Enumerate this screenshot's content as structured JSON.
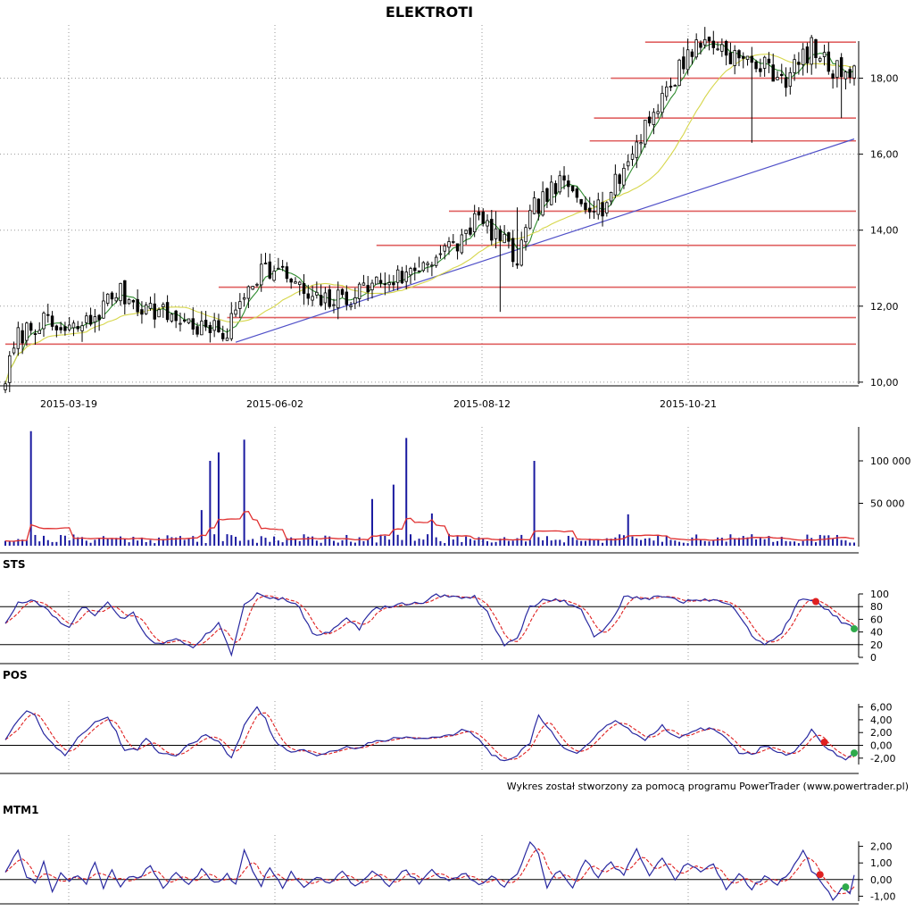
{
  "chart_data": [
    {
      "type": "candlestick",
      "title": "ELEKTROTI",
      "x_labels": [
        "2015-03-19",
        "2015-06-02",
        "2015-08-12",
        "2015-10-21"
      ],
      "y_ticks": [
        "10,00",
        "12,00",
        "14,00",
        "16,00",
        "18,00"
      ],
      "ylim": [
        9.95,
        19.4
      ],
      "grid": "dotted",
      "sessions": 200,
      "close_anchors": [
        [
          0,
          10.1
        ],
        [
          3,
          11.2
        ],
        [
          8,
          11.6
        ],
        [
          14,
          11.3
        ],
        [
          20,
          11.6
        ],
        [
          26,
          12.4
        ],
        [
          32,
          12.0
        ],
        [
          40,
          11.7
        ],
        [
          46,
          11.4
        ],
        [
          52,
          11.3
        ],
        [
          56,
          12.4
        ],
        [
          60,
          13.0
        ],
        [
          66,
          12.8
        ],
        [
          72,
          12.1
        ],
        [
          80,
          12.2
        ],
        [
          86,
          12.6
        ],
        [
          94,
          12.8
        ],
        [
          100,
          13.3
        ],
        [
          106,
          13.6
        ],
        [
          110,
          14.3
        ],
        [
          115,
          13.9
        ],
        [
          120,
          13.2
        ],
        [
          124,
          14.6
        ],
        [
          130,
          15.2
        ],
        [
          136,
          14.8
        ],
        [
          140,
          14.6
        ],
        [
          146,
          15.8
        ],
        [
          150,
          16.8
        ],
        [
          156,
          17.8
        ],
        [
          160,
          18.7
        ],
        [
          165,
          19.0
        ],
        [
          172,
          18.5
        ],
        [
          178,
          18.3
        ],
        [
          183,
          18.0
        ],
        [
          189,
          18.8
        ],
        [
          194,
          18.2
        ],
        [
          199,
          18.3
        ]
      ],
      "support_lines": [
        {
          "y": 11.0,
          "from_session": 0
        },
        {
          "y": 11.7,
          "from_session": 52
        },
        {
          "y": 12.5,
          "from_session": 50
        },
        {
          "y": 13.6,
          "from_session": 87
        },
        {
          "y": 14.5,
          "from_session": 104
        },
        {
          "y": 16.35,
          "from_session": 137
        },
        {
          "y": 16.95,
          "from_session": 138
        },
        {
          "y": 18.0,
          "from_session": 142
        },
        {
          "y": 18.95,
          "from_session": 150
        }
      ],
      "trend_line": {
        "from": [
          54,
          11.05
        ],
        "to": [
          199,
          16.4
        ]
      },
      "moving_averages": [
        {
          "period": 5,
          "color": "#2e8b2e"
        },
        {
          "period": 20,
          "color": "#d6d64a"
        }
      ]
    },
    {
      "type": "bar",
      "name": "volume",
      "y_ticks": [
        "50 000",
        "100 000"
      ],
      "ylim": [
        0,
        140000
      ],
      "spikes": [
        [
          6,
          135000
        ],
        [
          46,
          42000
        ],
        [
          48,
          100000
        ],
        [
          50,
          110000
        ],
        [
          56,
          125000
        ],
        [
          86,
          55000
        ],
        [
          91,
          72000
        ],
        [
          94,
          127000
        ],
        [
          100,
          38000
        ],
        [
          124,
          100000
        ],
        [
          146,
          37000
        ]
      ],
      "moving_average": {
        "color": "#e03030"
      }
    },
    {
      "type": "line",
      "title": "STS",
      "y_ticks": [
        "0",
        "20",
        "40",
        "60",
        "80",
        "100"
      ],
      "ylim": [
        0,
        100
      ],
      "reference_lines": [
        20,
        80
      ],
      "anchors": [
        [
          0,
          55
        ],
        [
          3,
          85
        ],
        [
          6,
          90
        ],
        [
          9,
          80
        ],
        [
          12,
          60
        ],
        [
          15,
          45
        ],
        [
          18,
          80
        ],
        [
          21,
          68
        ],
        [
          24,
          85
        ],
        [
          27,
          60
        ],
        [
          30,
          70
        ],
        [
          33,
          35
        ],
        [
          36,
          20
        ],
        [
          40,
          30
        ],
        [
          44,
          18
        ],
        [
          47,
          35
        ],
        [
          50,
          55
        ],
        [
          53,
          5
        ],
        [
          56,
          85
        ],
        [
          59,
          100
        ],
        [
          62,
          95
        ],
        [
          66,
          90
        ],
        [
          69,
          80
        ],
        [
          72,
          35
        ],
        [
          76,
          40
        ],
        [
          80,
          65
        ],
        [
          83,
          45
        ],
        [
          86,
          75
        ],
        [
          90,
          80
        ],
        [
          94,
          85
        ],
        [
          98,
          85
        ],
        [
          101,
          98
        ],
        [
          105,
          95
        ],
        [
          110,
          96
        ],
        [
          113,
          70
        ],
        [
          117,
          20
        ],
        [
          120,
          28
        ],
        [
          123,
          80
        ],
        [
          127,
          92
        ],
        [
          131,
          88
        ],
        [
          135,
          78
        ],
        [
          138,
          30
        ],
        [
          142,
          55
        ],
        [
          145,
          95
        ],
        [
          150,
          92
        ],
        [
          154,
          98
        ],
        [
          158,
          88
        ],
        [
          162,
          90
        ],
        [
          167,
          92
        ],
        [
          171,
          78
        ],
        [
          175,
          35
        ],
        [
          178,
          18
        ],
        [
          182,
          40
        ],
        [
          186,
          88
        ],
        [
          189,
          92
        ],
        [
          193,
          75
        ],
        [
          196,
          55
        ],
        [
          199,
          45
        ]
      ],
      "signal_markers": [
        {
          "session": 190,
          "value": 88,
          "color": "#e02020"
        },
        {
          "session": 199,
          "value": 45,
          "color": "#2eaa4a"
        }
      ]
    },
    {
      "type": "line",
      "title": "POS",
      "y_ticks": [
        "-2,00",
        "0,00",
        "2,00",
        "4,00",
        "6,00"
      ],
      "ylim": [
        -3,
        6.5
      ],
      "reference_lines": [
        0
      ],
      "anchors": [
        [
          0,
          1.0
        ],
        [
          3,
          4.0
        ],
        [
          5,
          5.5
        ],
        [
          7,
          4.5
        ],
        [
          9,
          2.0
        ],
        [
          12,
          -0.5
        ],
        [
          14,
          -1.5
        ],
        [
          17,
          1.0
        ],
        [
          21,
          3.5
        ],
        [
          24,
          4.5
        ],
        [
          26,
          2.0
        ],
        [
          28,
          -1.0
        ],
        [
          31,
          -0.5
        ],
        [
          33,
          1.0
        ],
        [
          36,
          -1.0
        ],
        [
          40,
          -1.5
        ],
        [
          44,
          0.5
        ],
        [
          47,
          1.5
        ],
        [
          50,
          0.5
        ],
        [
          53,
          -2.0
        ],
        [
          56,
          3.0
        ],
        [
          59,
          6.0
        ],
        [
          61,
          4.0
        ],
        [
          63,
          1.0
        ],
        [
          66,
          -1.0
        ],
        [
          70,
          -0.5
        ],
        [
          73,
          -1.5
        ],
        [
          77,
          -1.0
        ],
        [
          80,
          0.0
        ],
        [
          83,
          -0.5
        ],
        [
          86,
          0.5
        ],
        [
          90,
          1.0
        ],
        [
          94,
          1.2
        ],
        [
          98,
          1.0
        ],
        [
          101,
          1.5
        ],
        [
          104,
          1.5
        ],
        [
          108,
          2.5
        ],
        [
          111,
          1.0
        ],
        [
          114,
          -1.5
        ],
        [
          117,
          -2.5
        ],
        [
          120,
          -1.5
        ],
        [
          123,
          0.5
        ],
        [
          125,
          4.5
        ],
        [
          128,
          2.0
        ],
        [
          131,
          -0.5
        ],
        [
          134,
          -1.0
        ],
        [
          137,
          0.5
        ],
        [
          140,
          2.5
        ],
        [
          143,
          4.0
        ],
        [
          146,
          2.5
        ],
        [
          150,
          1.0
        ],
        [
          154,
          3.0
        ],
        [
          158,
          1.0
        ],
        [
          162,
          2.5
        ],
        [
          166,
          2.5
        ],
        [
          169,
          1.0
        ],
        [
          172,
          -1.0
        ],
        [
          175,
          -1.5
        ],
        [
          178,
          0.0
        ],
        [
          181,
          -1.0
        ],
        [
          184,
          -1.5
        ],
        [
          187,
          0.5
        ],
        [
          189,
          2.5
        ],
        [
          191,
          0.5
        ],
        [
          194,
          -1.0
        ],
        [
          197,
          -2.2
        ],
        [
          199,
          -1.5
        ]
      ],
      "signal_markers": [
        {
          "session": 192,
          "value": 0.5,
          "color": "#e02020"
        },
        {
          "session": 199,
          "value": -1.2,
          "color": "#2eaa4a"
        }
      ]
    },
    {
      "type": "line",
      "title": "MTM1",
      "y_ticks": [
        "-1,00",
        "0,00",
        "1,00",
        "2,00"
      ],
      "ylim": [
        -1.3,
        2.3
      ],
      "reference_lines": [
        0
      ],
      "anchors": [
        [
          0,
          0.5
        ],
        [
          3,
          1.7
        ],
        [
          5,
          0.2
        ],
        [
          7,
          -0.3
        ],
        [
          9,
          1.0
        ],
        [
          11,
          -0.8
        ],
        [
          13,
          0.5
        ],
        [
          15,
          0.0
        ],
        [
          17,
          0.3
        ],
        [
          19,
          -0.2
        ],
        [
          21,
          1.0
        ],
        [
          23,
          -0.5
        ],
        [
          25,
          0.6
        ],
        [
          27,
          -0.4
        ],
        [
          29,
          0.2
        ],
        [
          31,
          0.0
        ],
        [
          34,
          0.8
        ],
        [
          37,
          -0.4
        ],
        [
          40,
          0.3
        ],
        [
          43,
          -0.3
        ],
        [
          46,
          0.6
        ],
        [
          49,
          -0.2
        ],
        [
          52,
          0.3
        ],
        [
          54,
          -0.2
        ],
        [
          56,
          1.8
        ],
        [
          58,
          0.5
        ],
        [
          60,
          -0.3
        ],
        [
          62,
          0.8
        ],
        [
          65,
          -0.6
        ],
        [
          67,
          0.4
        ],
        [
          70,
          -0.4
        ],
        [
          73,
          0.2
        ],
        [
          76,
          -0.2
        ],
        [
          79,
          0.6
        ],
        [
          82,
          -0.4
        ],
        [
          86,
          0.5
        ],
        [
          90,
          -0.3
        ],
        [
          94,
          0.6
        ],
        [
          97,
          -0.3
        ],
        [
          100,
          0.5
        ],
        [
          104,
          0.0
        ],
        [
          108,
          0.3
        ],
        [
          111,
          -0.4
        ],
        [
          114,
          0.2
        ],
        [
          117,
          -0.4
        ],
        [
          120,
          0.3
        ],
        [
          123,
          2.3
        ],
        [
          125,
          1.5
        ],
        [
          127,
          -0.4
        ],
        [
          130,
          0.6
        ],
        [
          133,
          -0.6
        ],
        [
          136,
          1.2
        ],
        [
          139,
          0.2
        ],
        [
          142,
          1.0
        ],
        [
          145,
          0.3
        ],
        [
          148,
          1.8
        ],
        [
          151,
          0.3
        ],
        [
          154,
          1.2
        ],
        [
          157,
          0.1
        ],
        [
          160,
          1.0
        ],
        [
          163,
          0.4
        ],
        [
          166,
          0.9
        ],
        [
          169,
          -0.5
        ],
        [
          172,
          0.3
        ],
        [
          175,
          -0.5
        ],
        [
          178,
          0.2
        ],
        [
          181,
          -0.3
        ],
        [
          184,
          0.4
        ],
        [
          187,
          1.8
        ],
        [
          189,
          0.6
        ],
        [
          192,
          -0.4
        ],
        [
          194,
          -1.2
        ],
        [
          196,
          -0.5
        ],
        [
          198,
          -0.9
        ],
        [
          199,
          0.3
        ]
      ],
      "signal_markers": [
        {
          "session": 191,
          "value": 0.3,
          "color": "#e02020"
        },
        {
          "session": 197,
          "value": -0.45,
          "color": "#2eaa4a"
        }
      ]
    }
  ],
  "footer": {
    "credit": "Wykres został stworzony za pomocą programu PowerTrader (www.powertrader.pl)"
  }
}
